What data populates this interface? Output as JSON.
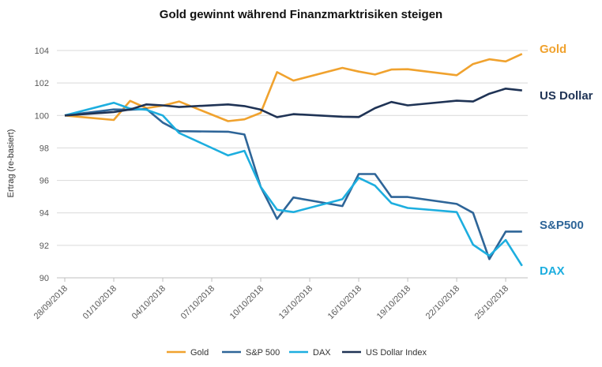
{
  "chart_data": {
    "type": "line",
    "title": "Gold gewinnt während Finanzmarktrisiken steigen",
    "xlabel": "",
    "ylabel": "Ertrag (re-basiert)",
    "ylim": [
      90,
      104
    ],
    "yticks": [
      90,
      92,
      94,
      96,
      98,
      100,
      102,
      104
    ],
    "grid": true,
    "legend": "bottom",
    "x": [
      "28/09/2018",
      "01/10/2018",
      "02/10/2018",
      "03/10/2018",
      "04/10/2018",
      "05/10/2018",
      "08/10/2018",
      "09/10/2018",
      "10/10/2018",
      "11/10/2018",
      "12/10/2018",
      "15/10/2018",
      "16/10/2018",
      "17/10/2018",
      "18/10/2018",
      "19/10/2018",
      "22/10/2018",
      "23/10/2018",
      "24/10/2018",
      "25/10/2018",
      "26/10/2018"
    ],
    "xticks": [
      "28/09/2018",
      "01/10/2018",
      "04/10/2018",
      "07/10/2018",
      "10/10/2018",
      "13/10/2018",
      "16/10/2018",
      "19/10/2018",
      "22/10/2018",
      "25/10/2018"
    ],
    "series": [
      {
        "name": "Gold",
        "end_label": "Gold",
        "color": "#F0A22E",
        "values": [
          100,
          99.72,
          100.9,
          100.45,
          100.6,
          100.86,
          99.65,
          99.76,
          100.16,
          102.67,
          102.15,
          102.93,
          102.7,
          102.52,
          102.83,
          102.85,
          102.48,
          103.17,
          103.46,
          103.33,
          103.79
        ]
      },
      {
        "name": "S&P 500",
        "end_label": "S&P500",
        "color": "#2E6598",
        "values": [
          100,
          100.37,
          100.35,
          100.4,
          99.56,
          99.03,
          99.0,
          98.83,
          95.6,
          93.63,
          94.95,
          94.42,
          96.39,
          96.39,
          94.98,
          94.98,
          94.55,
          94.0,
          91.15,
          92.85,
          92.85
        ]
      },
      {
        "name": "DAX",
        "end_label": "DAX",
        "color": "#1DAEDF",
        "values": [
          100,
          100.78,
          100.42,
          100.35,
          100.0,
          98.92,
          97.54,
          97.82,
          95.6,
          94.19,
          94.05,
          94.84,
          96.16,
          95.68,
          94.6,
          94.3,
          94.05,
          92.04,
          91.36,
          92.33,
          90.74
        ]
      },
      {
        "name": "US Dollar Index",
        "end_label": "US Dollar",
        "color": "#1F3355",
        "values": [
          100,
          100.21,
          100.37,
          100.68,
          100.62,
          100.52,
          100.68,
          100.58,
          100.36,
          99.89,
          100.08,
          99.92,
          99.9,
          100.45,
          100.83,
          100.62,
          100.91,
          100.86,
          101.34,
          101.65,
          101.54
        ]
      }
    ]
  }
}
